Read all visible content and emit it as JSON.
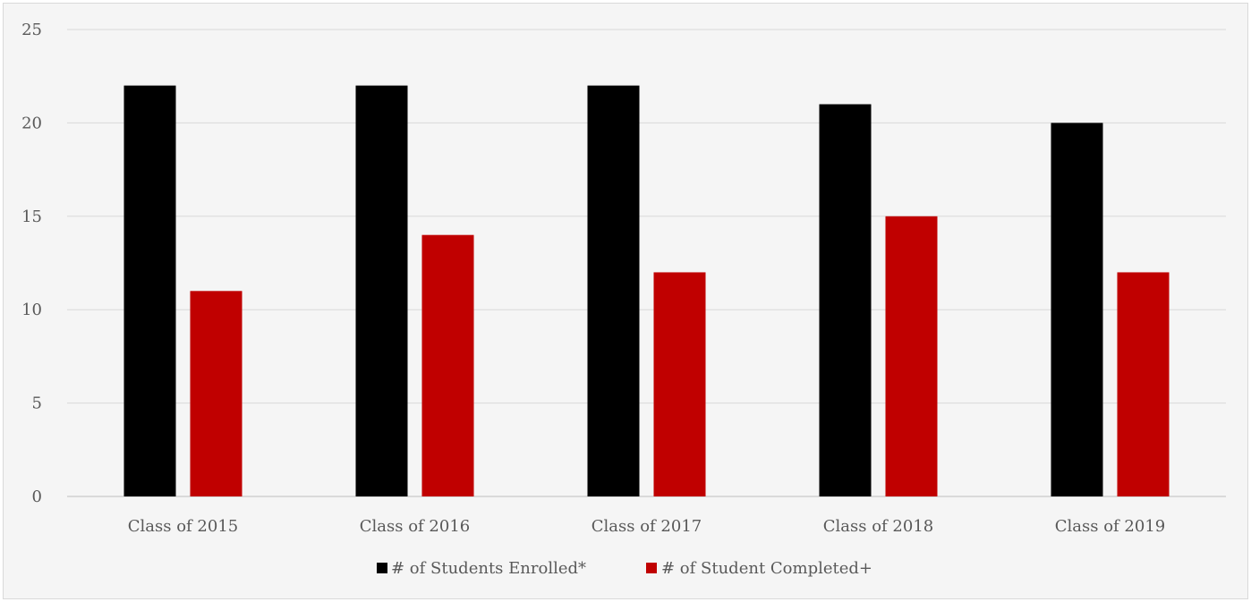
{
  "chart_data": {
    "type": "bar",
    "categories": [
      "Class of 2015",
      "Class of 2016",
      "Class of 2017",
      "Class of 2018",
      "Class of 2019"
    ],
    "series": [
      {
        "name": "# of Students Enrolled*",
        "color": "#000000",
        "values": [
          22,
          22,
          22,
          21,
          20
        ]
      },
      {
        "name": "# of Student Completed+",
        "color": "#c00000",
        "values": [
          11,
          14,
          12,
          15,
          12
        ]
      }
    ],
    "yticks": [
      0,
      5,
      10,
      15,
      20,
      25
    ],
    "ylim": [
      0,
      25
    ],
    "grid": true,
    "legend_position": "bottom"
  }
}
